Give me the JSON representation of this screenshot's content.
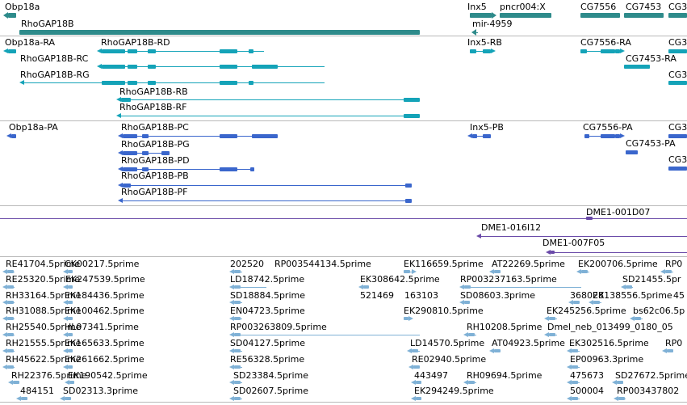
{
  "colors": {
    "gene": "#2e8b8b",
    "transcript": "#14a3b8",
    "protein": "#3a66cc",
    "alignment": "#6a4aa8",
    "est": "#7fb1d6",
    "separator": "#b9b9b9"
  },
  "tracks": {
    "genes": {
      "labels": [
        "Obp18a",
        "RhoGAP18B",
        "Inx5",
        "pncr004:X",
        "mir-4959",
        "CG7556",
        "CG7453",
        "CG3"
      ]
    },
    "transcripts": {
      "labels": [
        "Obp18a-RA",
        "RhoGAP18B-RD",
        "RhoGAP18B-RC",
        "RhoGAP18B-RG",
        "RhoGAP18B-RB",
        "RhoGAP18B-RF",
        "Inx5-RB",
        "CG7556-RA",
        "CG7453-RA",
        "CG3",
        "CG3"
      ]
    },
    "proteins": {
      "labels": [
        "Obp18a-PA",
        "RhoGAP18B-PC",
        "RhoGAP18B-PG",
        "RhoGAP18B-PD",
        "RhoGAP18B-PB",
        "RhoGAP18B-PF",
        "Inx5-PB",
        "CG7556-PA",
        "CG7453-PA",
        "CG3",
        "CG3"
      ]
    },
    "alignments": {
      "labels": [
        "DME1-001D07",
        "DME1-016I12",
        "DME1-007F05"
      ]
    },
    "ests": {
      "labels": [
        "RE41704.5prime",
        "CK00217.5prime",
        "202520",
        "RP003544134.5prime",
        "EK116659.5prime",
        "AT22269.5prime",
        "EK200706.5prime",
        "RP0",
        "RE25320.5prime",
        "EK247539.5prime",
        "LD18742.5prime",
        "EK308642.5prime",
        "RP003237163.5prime",
        "SD21455.5pr",
        "RH33164.5prime",
        "EK184436.5prime",
        "SD18884.5prime",
        "521469",
        "163103",
        "SD08603.3prime",
        "368028",
        "EK138556.5prime",
        "45",
        "RH31088.5prime",
        "EK100462.5prime",
        "EN04723.5prime",
        "EK290810.5prime",
        "EK245256.5prime",
        "bs62c06.5p",
        "RH25540.5prime",
        "HL07341.5prime",
        "RP003263809.5prime",
        "RH10208.5prime",
        "Dmel_neb_013499_0180_05",
        "RH21555.5prime",
        "EK165633.5prime",
        "SD04127.5prime",
        "LD14570.5prime",
        "AT04923.5prime",
        "EK302516.5prime",
        "RP0",
        "RH45622.5prime",
        "EK261662.5prime",
        "RE56328.5prime",
        "RE02940.5prime",
        "EP00963.3prime",
        "RH22376.5prime",
        "EK190542.5prime",
        "SD23384.5prime",
        "443497",
        "RH09694.5prime",
        "475673",
        "SD27672.5prime",
        "484151",
        "SD02313.3prime",
        "SD02607.5prime",
        "EK294249.5prime",
        "500004",
        "RP003437802"
      ]
    }
  }
}
